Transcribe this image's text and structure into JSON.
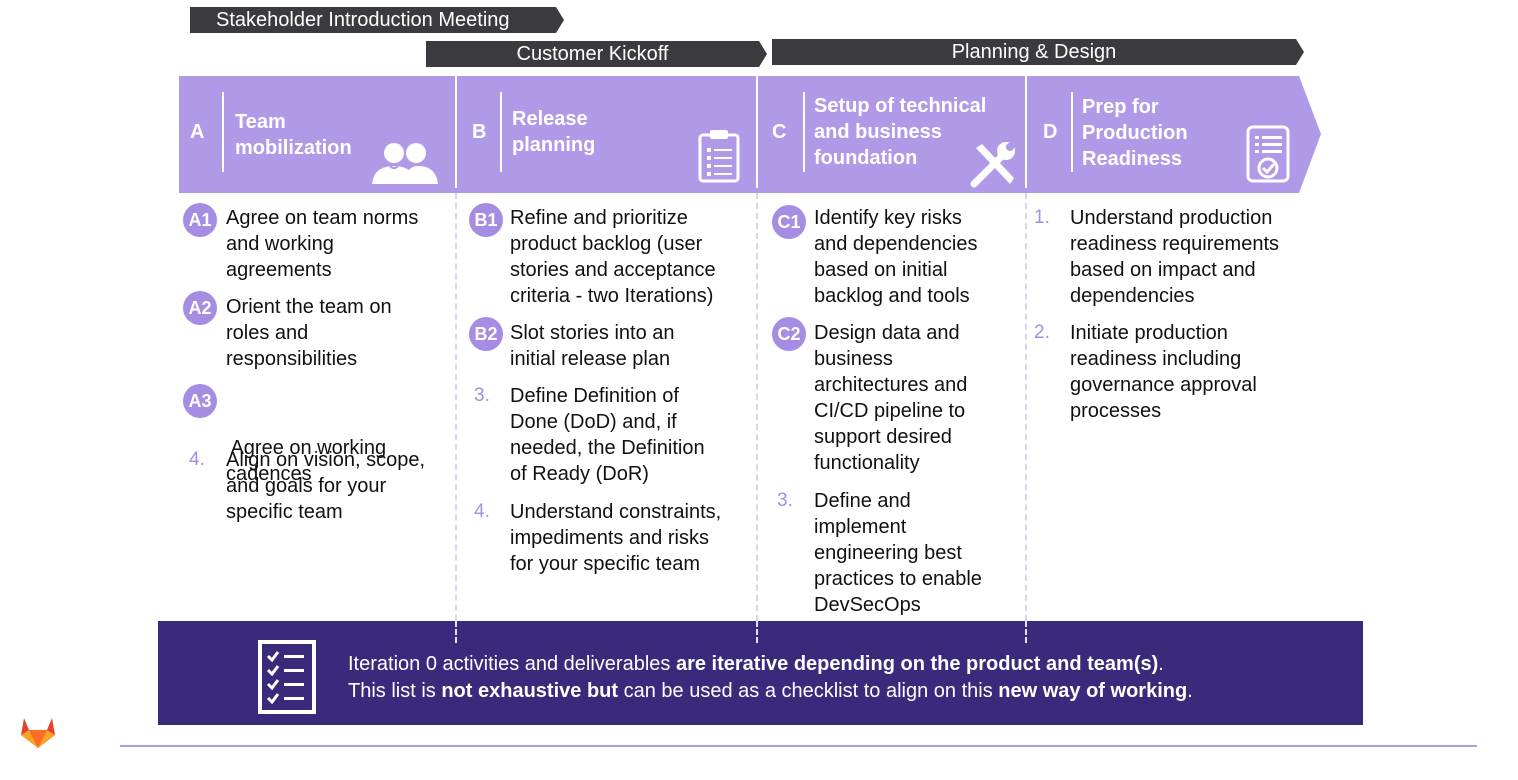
{
  "banners": {
    "stakeholder": "Stakeholder Introduction Meeting",
    "kickoff": "Customer Kickoff",
    "planning": "Planning & Design"
  },
  "columns": {
    "a": {
      "letter": "A",
      "title_line1": "Team",
      "title_line2": "mobilization",
      "icon": "people-icon"
    },
    "b": {
      "letter": "B",
      "title_line1": "Release",
      "title_line2": "planning",
      "icon": "clipboard-icon"
    },
    "c": {
      "letter": "C",
      "title_line1": "Setup of technical",
      "title_line2": "and business",
      "title_line3": "foundation",
      "icon": "tools-icon"
    },
    "d": {
      "letter": "D",
      "title_line1": "Prep for",
      "title_line2": "Production",
      "title_line3": "Readiness",
      "icon": "checked-document-icon"
    }
  },
  "items": {
    "a1": {
      "marker": "A1",
      "lines": [
        "Agree on team norms",
        "and working",
        "agreements"
      ]
    },
    "a2": {
      "marker": "A2",
      "lines": [
        "Orient the team on",
        "roles and",
        "responsibilities"
      ]
    },
    "a3": {
      "marker": "A3",
      "lines": [
        " Agree on working",
        "cadences"
      ]
    },
    "a4": {
      "marker": "4.",
      "lines": [
        "Align on vision, scope,",
        "and goals for your",
        "specific team"
      ]
    },
    "b1": {
      "marker": "B1",
      "lines": [
        "Refine and prioritize",
        "product backlog (user",
        "stories and acceptance",
        "criteria - two Iterations)"
      ]
    },
    "b2": {
      "marker": "B2",
      "lines": [
        "Slot stories into an",
        "initial release plan"
      ]
    },
    "b3": {
      "marker": "3.",
      "lines": [
        "Define Definition of",
        "Done (DoD) and, if",
        "needed, the Definition",
        "of Ready (DoR)"
      ]
    },
    "b4": {
      "marker": "4.",
      "lines": [
        "Understand constraints,",
        "impediments and risks",
        "for your specific team"
      ]
    },
    "c1": {
      "marker": "C1",
      "lines": [
        "Identify key risks",
        "and dependencies",
        "based on initial",
        "backlog and tools"
      ]
    },
    "c2": {
      "marker": "C2",
      "lines": [
        "Design data and",
        "business",
        "architectures and",
        "CI/CD pipeline to",
        "support desired",
        "functionality"
      ]
    },
    "c3": {
      "marker": "3.",
      "lines": [
        "Define and",
        "implement",
        "engineering best",
        "practices to enable",
        "DevSecOps"
      ]
    },
    "d1": {
      "marker": "1.",
      "lines": [
        "Understand production",
        "readiness requirements",
        "based on impact and",
        "dependencies"
      ]
    },
    "d2": {
      "marker": "2.",
      "lines": [
        "Initiate production",
        "readiness including",
        "governance approval",
        "processes"
      ]
    }
  },
  "bottom": {
    "line1_a": "Iteration 0 activities and deliverables ",
    "line1_b": "are iterative depending on the product and team(s)",
    "line1_c": ".",
    "line2_a": "This list is ",
    "line2_b": "not exhaustive but",
    "line2_c": " can be used as a checklist to align on this ",
    "line2_d": "new way of working",
    "line2_e": ".",
    "icon": "checklist-icon"
  },
  "footer": {
    "logo": "gitlab-logo-icon"
  },
  "colors": {
    "band": "#b09ae8",
    "badge": "#a58de3",
    "bottom_bar": "#3a2a7c",
    "banner": "#3a3a3f"
  }
}
